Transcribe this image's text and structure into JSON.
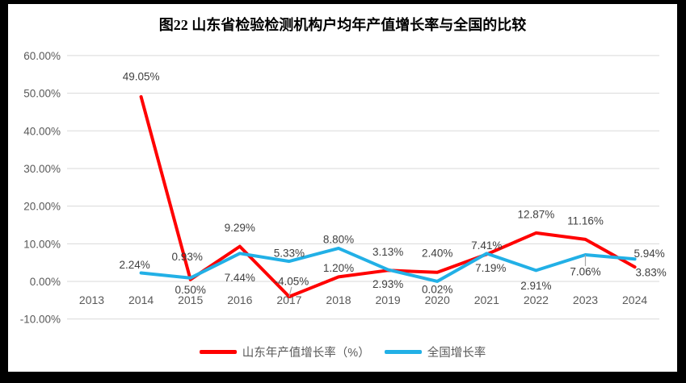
{
  "frame": {
    "color": "#000000",
    "canvas_background": "#FFFFFF"
  },
  "chart_data": {
    "type": "line",
    "title": "图22 山东省检验检测机构户均年产值增长率与全国的比较",
    "categories": [
      "2013",
      "2014",
      "2015",
      "2016",
      "2017",
      "2018",
      "2019",
      "2020",
      "2021",
      "2022",
      "2023",
      "2024"
    ],
    "series": [
      {
        "name": "山东年产值增长率（%）",
        "color": "#FF0000",
        "values": [
          null,
          49.05,
          0.5,
          9.29,
          -4.05,
          1.2,
          2.93,
          2.4,
          7.19,
          12.87,
          11.16,
          3.83
        ],
        "value_labels": [
          "",
          "49.05%",
          "0.50%",
          "9.29%",
          "-4.05%",
          "1.20%",
          "2.93%",
          "2.40%",
          "7.19%",
          "12.87%",
          "11.16%",
          "3.83%"
        ]
      },
      {
        "name": "全国增长率",
        "color": "#22B0E6",
        "values": [
          null,
          2.24,
          0.93,
          7.44,
          5.33,
          8.8,
          3.13,
          0.02,
          7.41,
          2.91,
          7.06,
          5.94
        ],
        "value_labels": [
          "",
          "2.24%",
          "0.93%",
          "7.44%",
          "5.33%",
          "8.80%",
          "3.13%",
          "0.02%",
          "7.41%",
          "2.91%",
          "7.06%",
          "5.94%"
        ]
      }
    ],
    "ylim": [
      -10,
      60
    ],
    "ytick_step": 10,
    "ytick_labels": [
      "-10.00%",
      "0.00%",
      "10.00%",
      "20.00%",
      "30.00%",
      "40.00%",
      "50.00%",
      "60.00%"
    ],
    "grid": true,
    "legend_position": "bottom",
    "gridline_color": "#D9D9D9",
    "axis_label_color": "#595959",
    "data_label_color": "#404040",
    "leader_line_color": "#A6A6A6",
    "label_layout": {
      "offsets": [
        [
          null,
          [
            0,
            -25
          ],
          [
            0,
            13
          ],
          [
            0,
            -23
          ],
          [
            3,
            -19
          ],
          [
            0,
            -11
          ],
          [
            0,
            17
          ],
          [
            0,
            -24
          ],
          [
            5,
            17
          ],
          [
            0,
            -23
          ],
          [
            0,
            -23
          ],
          [
            20,
            7
          ]
        ],
        [
          null,
          [
            -8,
            -10
          ],
          [
            -4,
            -26
          ],
          [
            0,
            30
          ],
          [
            0,
            -10
          ],
          [
            0,
            -11
          ],
          [
            0,
            -22
          ],
          [
            0,
            10
          ],
          [
            0,
            -10
          ],
          [
            0,
            19
          ],
          [
            0,
            21
          ],
          [
            18,
            -7
          ]
        ]
      ],
      "leaders": [
        [
          4
        ],
        [
          10
        ]
      ]
    }
  }
}
